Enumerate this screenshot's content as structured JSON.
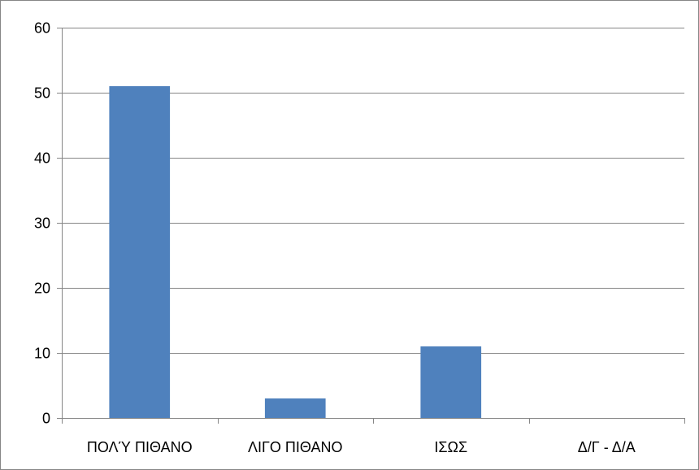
{
  "chart_data": {
    "type": "bar",
    "title": "",
    "xlabel": "",
    "ylabel": "",
    "categories": [
      "ΠΟΛΎ ΠΙΘΑΝΟ",
      "ΛΙΓΟ ΠΙΘΑΝΟ",
      "ΙΣΩΣ",
      "Δ/Γ - Δ/Α"
    ],
    "values": [
      51,
      3,
      11,
      0
    ],
    "ylim": [
      0,
      60
    ],
    "yticks": [
      "0",
      "10",
      "20",
      "30",
      "40",
      "50",
      "60"
    ],
    "grid": true,
    "legend": "none",
    "bar_color": "#4F81BD",
    "gridline_color": "#868686",
    "axis_color": "#868686"
  }
}
